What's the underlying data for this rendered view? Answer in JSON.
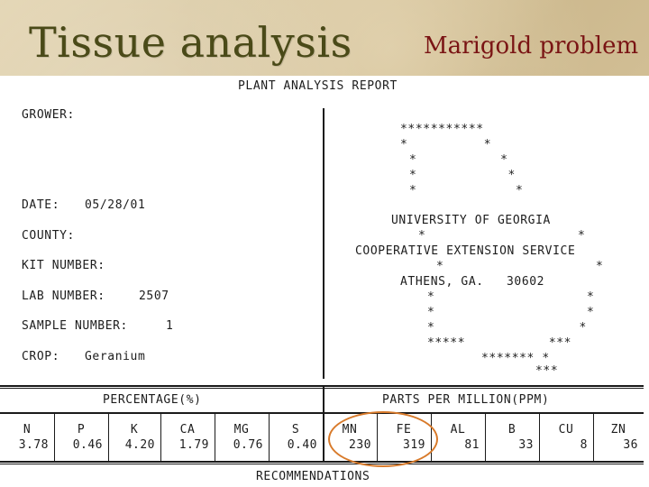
{
  "slide": {
    "title": "Tissue analysis",
    "subtitle": "Marigold problem"
  },
  "report": {
    "heading": "PLANT ANALYSIS REPORT",
    "grower_label": "GROWER:",
    "date_label": "DATE:",
    "date_value": "05/28/01",
    "county_label": "COUNTY:",
    "kit_label": "KIT NUMBER:",
    "lab_label": "LAB NUMBER:",
    "lab_value": "2507",
    "sample_label": "SAMPLE NUMBER:",
    "sample_value": "1",
    "crop_label": "CROP:",
    "crop_value": "Geranium",
    "logo_lines": {
      "l1": "***********",
      "l2": "*          *",
      "l3": "*           *",
      "l4": "*            *",
      "l5": "*             *",
      "university": "UNIVERSITY OF GEORGIA",
      "l7": "*                    *",
      "service": "COOPERATIVE EXTENSION SERVICE",
      "l9": "*                    *",
      "address": "ATHENS, GA.   30602",
      "l11": "*                    *",
      "l12": "*                    *",
      "l13": "*                   *",
      "l14": "*****           ***",
      "l15": "******* *",
      "l16": "***"
    },
    "percentage_header": "PERCENTAGE(%)",
    "ppm_header": "PARTS PER MILLION(PPM)",
    "recommendations": "RECOMMENDATIONS",
    "nutrients": [
      {
        "symbol": "N",
        "value": "3.78"
      },
      {
        "symbol": "P",
        "value": "0.46"
      },
      {
        "symbol": "K",
        "value": "4.20"
      },
      {
        "symbol": "CA",
        "value": "1.79"
      },
      {
        "symbol": "MG",
        "value": "0.76"
      },
      {
        "symbol": "S",
        "value": "0.40"
      },
      {
        "symbol": "MN",
        "value": "230"
      },
      {
        "symbol": "FE",
        "value": "319"
      },
      {
        "symbol": "AL",
        "value": "81"
      },
      {
        "symbol": "B",
        "value": "33"
      },
      {
        "symbol": "CU",
        "value": "8"
      },
      {
        "symbol": "ZN",
        "value": "36"
      }
    ],
    "highlight_color": "#d87a2a"
  }
}
